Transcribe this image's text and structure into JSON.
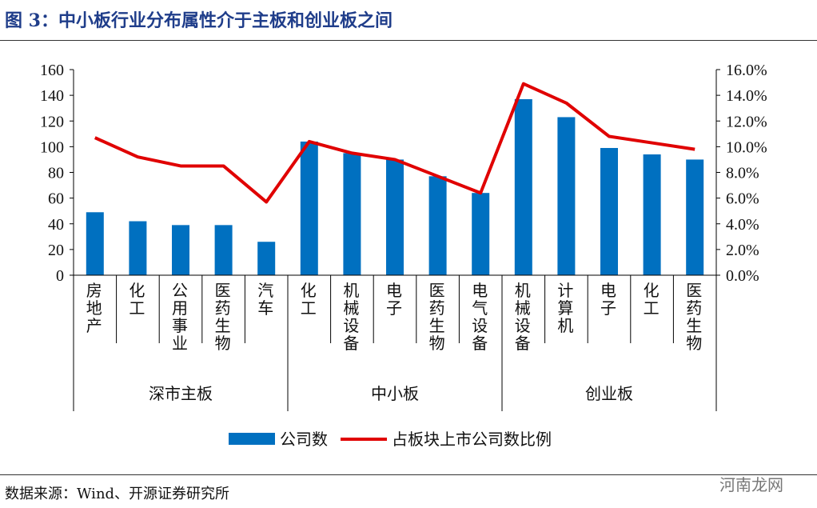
{
  "title": "图 3：中小板行业分布属性介于主板和创业板之间",
  "source": "数据来源：Wind、开源证券研究所",
  "watermark": "河南龙网",
  "chart_data": {
    "type": "bar+line",
    "categories": [
      "房地产",
      "化工",
      "公用事业",
      "医药生物",
      "汽车",
      "化工",
      "机械设备",
      "电子",
      "医药生物",
      "电气设备",
      "机械设备",
      "计算机",
      "电子",
      "化工",
      "医药生物"
    ],
    "groups": [
      {
        "label": "深市主板",
        "count": 5
      },
      {
        "label": "中小板",
        "count": 5
      },
      {
        "label": "创业板",
        "count": 5
      }
    ],
    "series": [
      {
        "name": "公司数",
        "type": "bar",
        "axis": "left",
        "color": "#0070c0",
        "values": [
          49,
          42,
          39,
          39,
          26,
          104,
          95,
          90,
          77,
          64,
          137,
          123,
          99,
          94,
          90
        ]
      },
      {
        "name": "占板块上市公司数比例",
        "type": "line",
        "axis": "right",
        "color": "#e00000",
        "values": [
          10.7,
          9.2,
          8.5,
          8.5,
          5.7,
          10.4,
          9.5,
          9.0,
          7.7,
          6.4,
          14.9,
          13.4,
          10.8,
          10.3,
          9.8
        ]
      }
    ],
    "left_axis": {
      "ylim": [
        0,
        160
      ],
      "ticks": [
        "0",
        "20",
        "40",
        "60",
        "80",
        "100",
        "120",
        "140",
        "160"
      ]
    },
    "right_axis": {
      "ylim": [
        0,
        16
      ],
      "ticks": [
        "0.0%",
        "2.0%",
        "4.0%",
        "6.0%",
        "8.0%",
        "10.0%",
        "12.0%",
        "14.0%",
        "16.0%"
      ]
    },
    "legend_position": "bottom",
    "grid": false
  }
}
